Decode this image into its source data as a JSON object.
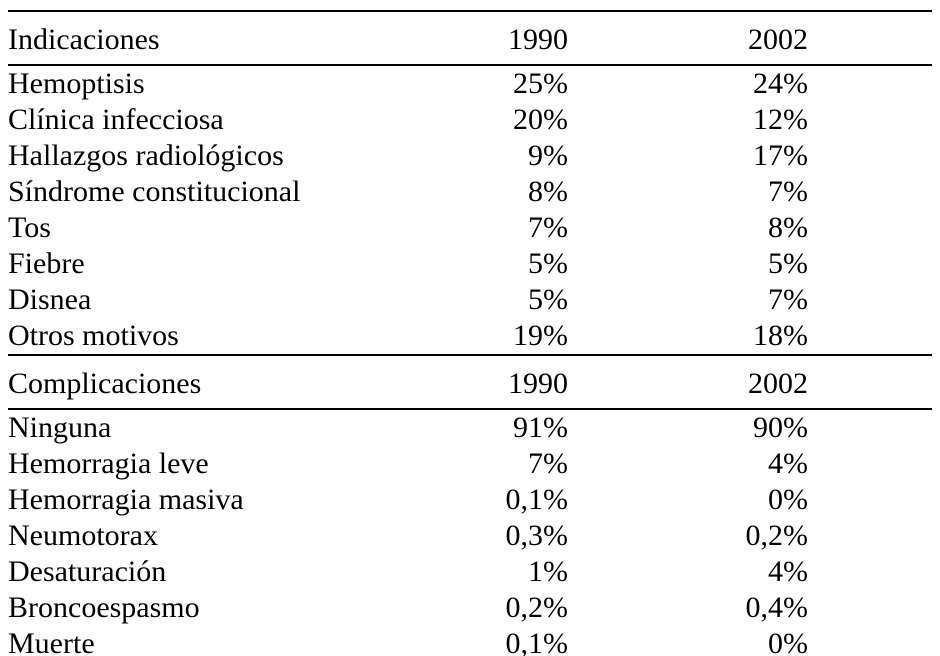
{
  "page": {
    "background_color": "#ffffff",
    "text_color": "#000000",
    "rule_color": "#000000"
  },
  "table": {
    "sections": [
      {
        "title": "Indicaciones",
        "col_1990": "1990",
        "col_2002": "2002",
        "rows": [
          {
            "label": "Hemoptisis",
            "y1990": "25%",
            "y2002": "24%"
          },
          {
            "label": "Clínica infecciosa",
            "y1990": "20%",
            "y2002": "12%"
          },
          {
            "label": "Hallazgos radiológicos",
            "y1990": "9%",
            "y2002": "17%"
          },
          {
            "label": "Síndrome constitucional",
            "y1990": "8%",
            "y2002": "7%"
          },
          {
            "label": "Tos",
            "y1990": "7%",
            "y2002": "8%"
          },
          {
            "label": "Fiebre",
            "y1990": "5%",
            "y2002": "5%"
          },
          {
            "label": "Disnea",
            "y1990": "5%",
            "y2002": "7%"
          },
          {
            "label": "Otros motivos",
            "y1990": "19%",
            "y2002": "18%"
          }
        ]
      },
      {
        "title": "Complicaciones",
        "col_1990": "1990",
        "col_2002": "2002",
        "rows": [
          {
            "label": "Ninguna",
            "y1990": "91%",
            "y2002": "90%"
          },
          {
            "label": "Hemorragia leve",
            "y1990": "7%",
            "y2002": "4%"
          },
          {
            "label": "Hemorragia masiva",
            "y1990": "0,1%",
            "y2002": "0%"
          },
          {
            "label": "Neumotorax",
            "y1990": "0,3%",
            "y2002": "0,2%"
          },
          {
            "label": "Desaturación",
            "y1990": "1%",
            "y2002": "4%"
          },
          {
            "label": "Broncoespasmo",
            "y1990": "0,2%",
            "y2002": "0,4%"
          },
          {
            "label": "Muerte",
            "y1990": "0,1%",
            "y2002": "0%"
          }
        ]
      }
    ]
  },
  "chart_data": {
    "type": "table",
    "sections": [
      {
        "title": "Indicaciones",
        "columns": [
          "1990",
          "2002"
        ],
        "rows": [
          [
            "Hemoptisis",
            "25%",
            "24%"
          ],
          [
            "Clínica infecciosa",
            "20%",
            "12%"
          ],
          [
            "Hallazgos radiológicos",
            "9%",
            "17%"
          ],
          [
            "Síndrome constitucional",
            "8%",
            "7%"
          ],
          [
            "Tos",
            "7%",
            "8%"
          ],
          [
            "Fiebre",
            "5%",
            "5%"
          ],
          [
            "Disnea",
            "5%",
            "7%"
          ],
          [
            "Otros motivos",
            "19%",
            "18%"
          ]
        ]
      },
      {
        "title": "Complicaciones",
        "columns": [
          "1990",
          "2002"
        ],
        "rows": [
          [
            "Ninguna",
            "91%",
            "90%"
          ],
          [
            "Hemorragia leve",
            "7%",
            "4%"
          ],
          [
            "Hemorragia masiva",
            "0,1%",
            "0%"
          ],
          [
            "Neumotorax",
            "0,3%",
            "0,2%"
          ],
          [
            "Desaturación",
            "1%",
            "4%"
          ],
          [
            "Broncoespasmo",
            "0,2%",
            "0,4%"
          ],
          [
            "Muerte",
            "0,1%",
            "0%"
          ]
        ]
      }
    ]
  }
}
